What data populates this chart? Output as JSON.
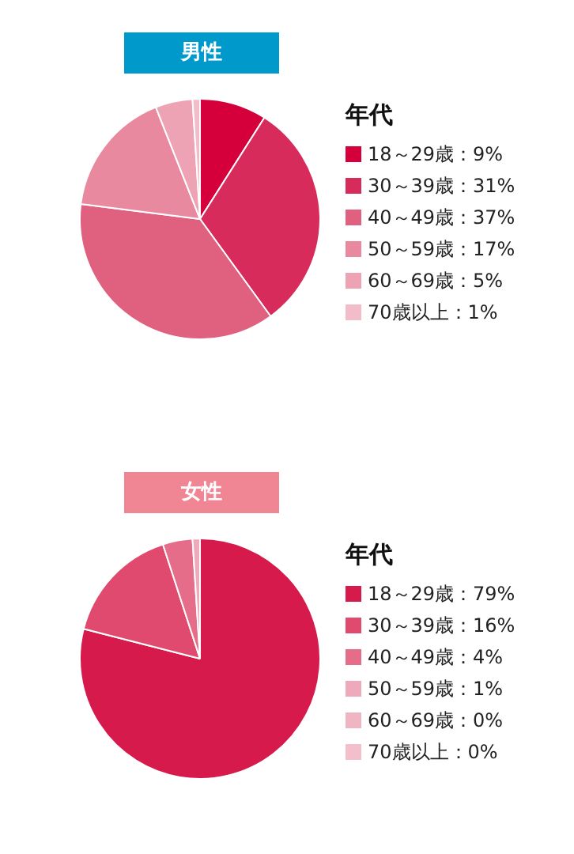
{
  "chart_data": [
    {
      "type": "pie",
      "title": "男性",
      "legend_title": "年代",
      "legend": "right",
      "categories": [
        "18～29歳：9%",
        "30～39歳：31%",
        "40～49歳：37%",
        "50～59歳：17%",
        "60～69歳：5%",
        "70歳以上：1%"
      ],
      "values": [
        9,
        31,
        37,
        17,
        5,
        1
      ],
      "colors": [
        "#d5003b",
        "#d72b5b",
        "#e0607f",
        "#e8899f",
        "#eda3b3",
        "#f2bcc8"
      ]
    },
    {
      "type": "pie",
      "title": "女性",
      "legend_title": "年代",
      "legend": "right",
      "categories": [
        "18～29歳：79%",
        "30～39歳：16%",
        "40～49歳：4%",
        "50～59歳：1%",
        "60～69歳：0%",
        "70歳以上：0%"
      ],
      "values": [
        79,
        16,
        4,
        1,
        0,
        0
      ],
      "colors": [
        "#d61a4b",
        "#e04a6e",
        "#e66d89",
        "#eeaabb",
        "#f0b5c3",
        "#f2bfcb"
      ]
    }
  ]
}
